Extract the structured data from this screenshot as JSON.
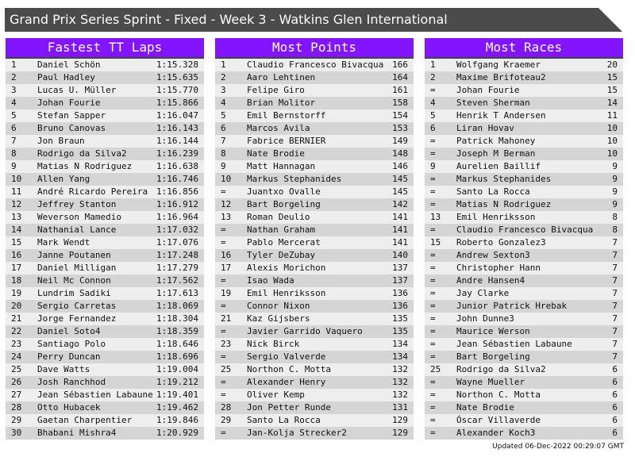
{
  "title": "Grand Prix Series Sprint - Fixed - Week 3 - Watkins Glen International",
  "colors": {
    "header": "#8214ff",
    "title_bar": "#4b4b4b"
  },
  "panels": [
    {
      "title": "Fastest TT Laps",
      "rows": [
        [
          "1",
          "Daniel Schön",
          "1:15.328"
        ],
        [
          "2",
          "Paul Hadley",
          "1:15.635"
        ],
        [
          "3",
          "Lucas U. Müller",
          "1:15.770"
        ],
        [
          "4",
          "Johan Fourie",
          "1:15.866"
        ],
        [
          "5",
          "Stefan Sapper",
          "1:16.047"
        ],
        [
          "6",
          "Bruno Canovas",
          "1:16.143"
        ],
        [
          "7",
          "Jon Braun",
          "1:16.144"
        ],
        [
          "8",
          "Rodrigo da Silva2",
          "1:16.239"
        ],
        [
          "9",
          "Matias N Rodriguez",
          "1:16.638"
        ],
        [
          "10",
          "Allen Yang",
          "1:16.746"
        ],
        [
          "11",
          "André Ricardo Pereira",
          "1:16.856"
        ],
        [
          "12",
          "Jeffrey Stanton",
          "1:16.912"
        ],
        [
          "13",
          "Weverson Mamedio",
          "1:16.964"
        ],
        [
          "14",
          "Nathanial Lance",
          "1:17.032"
        ],
        [
          "15",
          "Mark Wendt",
          "1:17.076"
        ],
        [
          "16",
          "Janne Poutanen",
          "1:17.248"
        ],
        [
          "17",
          "Daniel Milligan",
          "1:17.279"
        ],
        [
          "18",
          "Neil Mc Connon",
          "1:17.562"
        ],
        [
          "19",
          "Lundrim Sadiki",
          "1:17.613"
        ],
        [
          "20",
          "Sergio Carretas",
          "1:18.069"
        ],
        [
          "21",
          "Jorge Fernandez",
          "1:18.304"
        ],
        [
          "22",
          "Daniel Soto4",
          "1:18.359"
        ],
        [
          "23",
          "Santiago Polo",
          "1:18.646"
        ],
        [
          "24",
          "Perry Duncan",
          "1:18.696"
        ],
        [
          "25",
          "Dave Watts",
          "1:19.004"
        ],
        [
          "26",
          "Josh Ranchhod",
          "1:19.212"
        ],
        [
          "27",
          "Jean Sébastien Labaune",
          "1:19.401"
        ],
        [
          "28",
          "Otto Hubacek",
          "1:19.462"
        ],
        [
          "29",
          "Gaetan Charpentier",
          "1:19.846"
        ],
        [
          "30",
          "Bhabani Mishra4",
          "1:20.929"
        ]
      ]
    },
    {
      "title": "Most Points",
      "rows": [
        [
          "1",
          "Claudio Francesco Bivacqua",
          "166"
        ],
        [
          "2",
          "Aaro Lehtinen",
          "164"
        ],
        [
          "3",
          "Felipe Giro",
          "161"
        ],
        [
          "4",
          "Brian Molitor",
          "158"
        ],
        [
          "5",
          "Emil Bernstorff",
          "154"
        ],
        [
          "6",
          "Marcos Avila",
          "153"
        ],
        [
          "7",
          "Fabrice BERNIER",
          "149"
        ],
        [
          "8",
          "Nate Brodie",
          "148"
        ],
        [
          "9",
          "Matt Hannagan",
          "146"
        ],
        [
          "10",
          "Markus Stephanides",
          "145"
        ],
        [
          "=",
          "Juantxo Ovalle",
          "145"
        ],
        [
          "12",
          "Bart Borgeling",
          "142"
        ],
        [
          "13",
          "Roman Deulio",
          "141"
        ],
        [
          "=",
          "Nathan Graham",
          "141"
        ],
        [
          "=",
          "Pablo Mercerat",
          "141"
        ],
        [
          "16",
          "Tyler DeZubay",
          "140"
        ],
        [
          "17",
          "Alexis Morichon",
          "137"
        ],
        [
          "=",
          "Isao Wada",
          "137"
        ],
        [
          "19",
          "Emil Henriksson",
          "136"
        ],
        [
          "=",
          "Connor Nixon",
          "136"
        ],
        [
          "21",
          "Kaz Gijsbers",
          "135"
        ],
        [
          "=",
          "Javier Garrido Vaquero",
          "135"
        ],
        [
          "23",
          "Nick Birck",
          "134"
        ],
        [
          "=",
          "Sergio Valverde",
          "134"
        ],
        [
          "25",
          "Northon C. Motta",
          "132"
        ],
        [
          "=",
          "Alexander Henry",
          "132"
        ],
        [
          "=",
          "Oliver Kemp",
          "132"
        ],
        [
          "28",
          "Jon Petter Runde",
          "131"
        ],
        [
          "29",
          "Santo La Rocca",
          "129"
        ],
        [
          "=",
          "Jan-Kolja Strecker2",
          "129"
        ]
      ]
    },
    {
      "title": "Most Races",
      "rows": [
        [
          "1",
          "Wolfgang Kraemer",
          "20"
        ],
        [
          "2",
          "Maxime Brifoteau2",
          "15"
        ],
        [
          "=",
          "Johan Fourie",
          "15"
        ],
        [
          "4",
          "Steven Sherman",
          "14"
        ],
        [
          "5",
          "Henrik T Andersen",
          "11"
        ],
        [
          "6",
          "Liran Hovav",
          "10"
        ],
        [
          "=",
          "Patrick Mahoney",
          "10"
        ],
        [
          "=",
          "Joseph M Berman",
          "10"
        ],
        [
          "9",
          "Aurelien Baillif",
          "9"
        ],
        [
          "=",
          "Markus Stephanides",
          "9"
        ],
        [
          "=",
          "Santo La Rocca",
          "9"
        ],
        [
          "=",
          "Matias N Rodriguez",
          "9"
        ],
        [
          "13",
          "Emil Henriksson",
          "8"
        ],
        [
          "=",
          "Claudio Francesco Bivacqua",
          "8"
        ],
        [
          "15",
          "Roberto Gonzalez3",
          "7"
        ],
        [
          "=",
          "Andrew Sexton3",
          "7"
        ],
        [
          "=",
          "Christopher Hann",
          "7"
        ],
        [
          "=",
          "Andre Hansen4",
          "7"
        ],
        [
          "=",
          "Jay Clarke",
          "7"
        ],
        [
          "=",
          "Junior Patrick Hrebak",
          "7"
        ],
        [
          "=",
          "John Dunne3",
          "7"
        ],
        [
          "=",
          "Maurice Werson",
          "7"
        ],
        [
          "=",
          "Jean Sébastien Labaune",
          "7"
        ],
        [
          "=",
          "Bart Borgeling",
          "7"
        ],
        [
          "25",
          "Rodrigo da Silva2",
          "6"
        ],
        [
          "=",
          "Wayne Mueller",
          "6"
        ],
        [
          "=",
          "Northon C. Motta",
          "6"
        ],
        [
          "=",
          "Nate Brodie",
          "6"
        ],
        [
          "=",
          "Óscar Villaverde",
          "6"
        ],
        [
          "=",
          "Alexander Koch3",
          "6"
        ]
      ]
    }
  ],
  "updated": "Updated 06-Dec-2022 00:29:07 GMT"
}
